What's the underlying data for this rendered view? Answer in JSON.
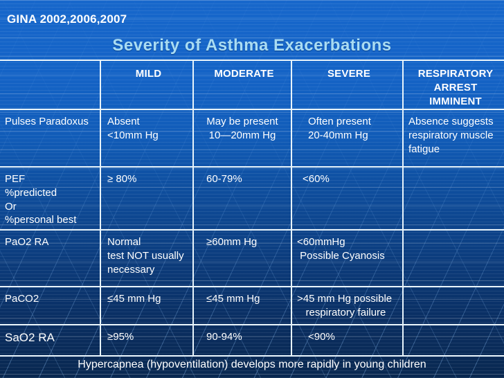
{
  "slide": {
    "eyebrow": "GINA 2002,2006,2007",
    "title": "Severity of Asthma Exacerbations",
    "footer": "Hypercapnea (hypoventilation) develops more rapidly in young children"
  },
  "colors": {
    "bg_top": "#1767CB",
    "bg_mid": "#0E4C9A",
    "bg_bottom": "#092850",
    "table_line": "#E8F4FB",
    "title_text": "#A9DCF3",
    "body_text": "#FFFFFF"
  },
  "table": {
    "header": {
      "empty": "",
      "mild": "MILD",
      "moderate": "MODERATE",
      "severe": "SEVERE",
      "arrest": "RESPIRATORY\nARREST\nIMMINENT"
    },
    "rows": [
      {
        "label": "Pulses Paradoxus",
        "mild": "Absent\n<10mm Hg",
        "moderate": "May be present\n10—20mm Hg",
        "severe": "Often present\n20-40mm Hg",
        "arrest": "Absence suggests\nrespiratory muscle\nfatigue"
      },
      {
        "label": "PEF\n%predicted\nOr\n%personal best",
        "mild": "≥ 80%",
        "moderate": "60-79%",
        "severe": "<60%",
        "arrest": ""
      },
      {
        "label": "PaO2 RA",
        "mild": "Normal\ntest NOT usually\nnecessary",
        "moderate": "≥60mm Hg",
        "severe": "<60mmHg\n Possible Cyanosis",
        "arrest": ""
      },
      {
        "label": "PaCO2",
        "mild": "≤45 mm Hg",
        "moderate": "≤45 mm Hg",
        "severe": ">45 mm Hg possible\n   respiratory failure",
        "arrest": ""
      },
      {
        "label": "SaO2 RA",
        "mild": "≥95%",
        "moderate": "90-94%",
        "severe": "<90%",
        "arrest": ""
      }
    ]
  }
}
